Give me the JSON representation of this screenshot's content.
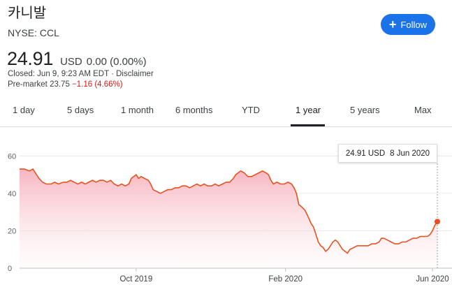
{
  "header": {
    "company_name": "카니발",
    "ticker": "NYSE: CCL",
    "follow_label": "Follow",
    "follow_icon": "plus-icon"
  },
  "quote": {
    "price": "24.91",
    "currency": "USD",
    "change": "0.00 (0.00%)",
    "closed_text": "Closed: Jun 9, 9:23 AM EDT · Disclaimer",
    "premarket_label": "Pre-market 23.75",
    "premarket_change": "−1.16 (4.66%)"
  },
  "tabs": [
    {
      "label": "1 day"
    },
    {
      "label": "5 days"
    },
    {
      "label": "1 month"
    },
    {
      "label": "6 months"
    },
    {
      "label": "YTD"
    },
    {
      "label": "1 year",
      "active": true
    },
    {
      "label": "5 years"
    },
    {
      "label": "Max"
    }
  ],
  "tooltip": {
    "value": "24.91 USD",
    "date": "8 Jun 2020"
  },
  "colors": {
    "line": "#e8501f",
    "fill": "#f6b9c3",
    "accent": "#1a73e8",
    "negative": "#c5221f"
  },
  "chart_data": {
    "type": "area",
    "yticks": [
      0,
      20,
      40,
      60
    ],
    "ylim": [
      0,
      65
    ],
    "xticks": [
      {
        "label": "Oct 2019",
        "x": 96
      },
      {
        "label": "Feb 2020",
        "x": 219
      },
      {
        "label": "Jun 2020",
        "x": 340
      }
    ],
    "xlim": [
      0,
      344
    ],
    "points": [
      [
        0,
        53
      ],
      [
        4,
        53
      ],
      [
        8,
        52
      ],
      [
        11,
        53
      ],
      [
        13,
        51
      ],
      [
        16,
        48
      ],
      [
        19,
        46
      ],
      [
        22,
        45
      ],
      [
        26,
        45
      ],
      [
        29,
        46
      ],
      [
        32,
        45
      ],
      [
        36,
        46
      ],
      [
        39,
        46
      ],
      [
        42,
        47
      ],
      [
        45,
        46
      ],
      [
        48,
        45
      ],
      [
        51,
        46
      ],
      [
        54,
        45
      ],
      [
        57,
        46
      ],
      [
        60,
        47
      ],
      [
        63,
        46
      ],
      [
        66,
        47
      ],
      [
        69,
        47
      ],
      [
        72,
        46
      ],
      [
        75,
        47
      ],
      [
        78,
        45
      ],
      [
        81,
        44
      ],
      [
        84,
        45
      ],
      [
        87,
        44
      ],
      [
        90,
        45
      ],
      [
        92,
        48
      ],
      [
        94,
        49
      ],
      [
        96,
        50
      ],
      [
        98,
        48
      ],
      [
        100,
        49
      ],
      [
        103,
        48
      ],
      [
        106,
        47
      ],
      [
        108,
        45
      ],
      [
        110,
        42
      ],
      [
        113,
        41
      ],
      [
        116,
        40
      ],
      [
        119,
        41
      ],
      [
        122,
        42
      ],
      [
        125,
        42
      ],
      [
        128,
        43
      ],
      [
        131,
        43
      ],
      [
        134,
        44
      ],
      [
        137,
        44
      ],
      [
        140,
        43
      ],
      [
        143,
        44
      ],
      [
        146,
        45
      ],
      [
        149,
        44
      ],
      [
        152,
        45
      ],
      [
        155,
        44
      ],
      [
        158,
        44
      ],
      [
        161,
        45
      ],
      [
        164,
        44
      ],
      [
        167,
        45
      ],
      [
        170,
        46
      ],
      [
        173,
        46
      ],
      [
        176,
        48
      ],
      [
        178,
        50
      ],
      [
        180,
        51
      ],
      [
        182,
        52
      ],
      [
        185,
        51
      ],
      [
        188,
        49
      ],
      [
        191,
        49
      ],
      [
        194,
        50
      ],
      [
        197,
        51
      ],
      [
        200,
        52
      ],
      [
        203,
        51
      ],
      [
        205,
        50
      ],
      [
        207,
        47
      ],
      [
        209,
        45
      ],
      [
        212,
        46
      ],
      [
        215,
        45
      ],
      [
        218,
        45
      ],
      [
        221,
        46
      ],
      [
        224,
        45
      ],
      [
        226,
        43
      ],
      [
        228,
        40
      ],
      [
        230,
        34
      ],
      [
        232,
        33
      ],
      [
        235,
        31
      ],
      [
        238,
        27
      ],
      [
        240,
        24
      ],
      [
        242,
        22
      ],
      [
        244,
        18
      ],
      [
        246,
        14
      ],
      [
        248,
        12
      ],
      [
        250,
        11
      ],
      [
        252,
        9
      ],
      [
        254,
        10
      ],
      [
        256,
        12
      ],
      [
        258,
        14
      ],
      [
        260,
        15
      ],
      [
        262,
        14
      ],
      [
        264,
        12
      ],
      [
        266,
        10
      ],
      [
        268,
        9
      ],
      [
        270,
        8
      ],
      [
        272,
        10
      ],
      [
        275,
        11
      ],
      [
        278,
        12
      ],
      [
        281,
        12
      ],
      [
        284,
        12
      ],
      [
        287,
        12
      ],
      [
        290,
        13
      ],
      [
        293,
        13
      ],
      [
        296,
        14
      ],
      [
        298,
        16
      ],
      [
        300,
        16
      ],
      [
        303,
        15
      ],
      [
        306,
        14
      ],
      [
        309,
        13
      ],
      [
        312,
        13
      ],
      [
        315,
        14
      ],
      [
        318,
        14
      ],
      [
        321,
        15
      ],
      [
        324,
        16
      ],
      [
        327,
        16
      ],
      [
        330,
        17
      ],
      [
        333,
        17
      ],
      [
        336,
        17
      ],
      [
        338,
        18
      ],
      [
        340,
        20
      ],
      [
        342,
        23
      ],
      [
        344,
        24.91
      ]
    ]
  }
}
